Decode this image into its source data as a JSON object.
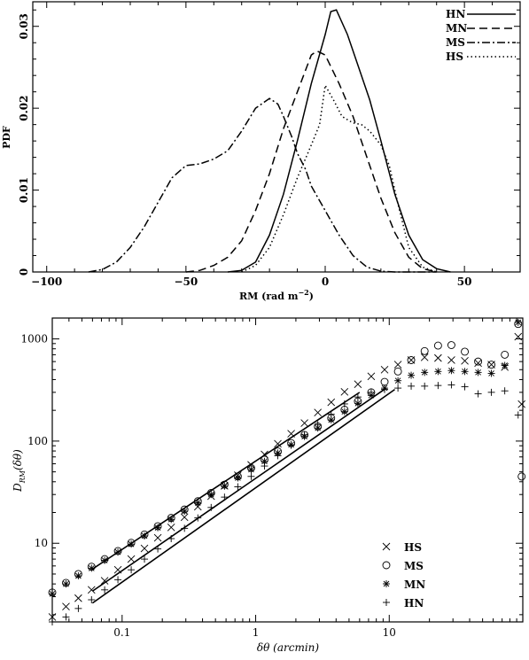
{
  "chart_data": [
    {
      "type": "line",
      "xlabel": "RM (rad m",
      "xlabel_sup": "−2",
      "xlabel_end": ")",
      "ylabel": "PDF",
      "xlim": [
        -105,
        70
      ],
      "ylim": [
        0,
        0.033
      ],
      "x_ticks": [
        -100,
        -50,
        0,
        50
      ],
      "y_ticks": [
        0,
        0.01,
        0.02,
        0.03
      ],
      "x_tick_labels": [
        "−100",
        "−50",
        "0",
        "50"
      ],
      "y_tick_labels": [
        "0",
        "0.01",
        "0.02",
        "0.03"
      ],
      "legend_position": "top-right",
      "series": [
        {
          "name": "HN",
          "style": "solid",
          "x": [
            -35,
            -30,
            -25,
            -20,
            -15,
            -10,
            -5,
            0,
            2,
            4,
            8,
            12,
            16,
            20,
            25,
            30,
            35,
            40,
            45
          ],
          "y": [
            0,
            0.0002,
            0.0012,
            0.0045,
            0.0095,
            0.016,
            0.023,
            0.029,
            0.0318,
            0.032,
            0.029,
            0.025,
            0.021,
            0.016,
            0.0095,
            0.0045,
            0.0015,
            0.0004,
            0
          ]
        },
        {
          "name": "MN",
          "style": "dashed",
          "x": [
            -50,
            -45,
            -40,
            -35,
            -30,
            -25,
            -20,
            -15,
            -10,
            -5,
            -3,
            0,
            5,
            10,
            15,
            20,
            25,
            30,
            35,
            40
          ],
          "y": [
            0,
            0.0002,
            0.0008,
            0.0018,
            0.0038,
            0.0075,
            0.012,
            0.0175,
            0.022,
            0.0265,
            0.027,
            0.0265,
            0.023,
            0.019,
            0.014,
            0.009,
            0.0048,
            0.0018,
            0.0004,
            0
          ]
        },
        {
          "name": "MS",
          "style": "dash-dot",
          "x": [
            -85,
            -80,
            -75,
            -70,
            -65,
            -60,
            -55,
            -50,
            -45,
            -40,
            -35,
            -30,
            -25,
            -20,
            -17,
            -15,
            -12,
            -10,
            -7,
            -5,
            0,
            5,
            10,
            15,
            20,
            25,
            30,
            35,
            40
          ],
          "y": [
            0,
            0.0003,
            0.0012,
            0.003,
            0.0055,
            0.0085,
            0.0115,
            0.013,
            0.0132,
            0.0138,
            0.0148,
            0.0172,
            0.02,
            0.0212,
            0.0205,
            0.019,
            0.0165,
            0.0145,
            0.0125,
            0.0105,
            0.0075,
            0.0045,
            0.002,
            0.0006,
            0.0001,
            0,
            0,
            0,
            0
          ]
        },
        {
          "name": "HS",
          "style": "dotted",
          "x": [
            -30,
            -25,
            -20,
            -15,
            -10,
            -5,
            -2,
            0,
            3,
            6,
            10,
            13,
            16,
            20,
            23,
            26,
            30,
            35,
            40
          ],
          "y": [
            0,
            0.0008,
            0.003,
            0.007,
            0.0115,
            0.0155,
            0.018,
            0.0228,
            0.021,
            0.019,
            0.0182,
            0.018,
            0.0172,
            0.0155,
            0.013,
            0.0085,
            0.003,
            0.0006,
            0
          ]
        }
      ]
    },
    {
      "type": "scatter",
      "xscale": "log",
      "yscale": "log",
      "xlabel": "δθ (arcmin)",
      "ylabel": "D",
      "ylabel_sub": "RM",
      "ylabel_end": "(δθ)",
      "xlim": [
        0.03,
        100
      ],
      "ylim": [
        1.7,
        1600
      ],
      "x_ticks": [
        0.1,
        1,
        10
      ],
      "y_ticks": [
        10,
        100,
        1000
      ],
      "x_tick_labels": [
        "0.1",
        "1",
        "10"
      ],
      "y_tick_labels": [
        "10",
        "100",
        "1000"
      ],
      "legend_position": "bottom-right",
      "series": [
        {
          "name": "HS",
          "marker": "x",
          "x": [
            0.03,
            0.038,
            0.047,
            0.059,
            0.074,
            0.093,
            0.117,
            0.147,
            0.185,
            0.233,
            0.293,
            0.369,
            0.464,
            0.584,
            0.735,
            0.925,
            1.164,
            1.465,
            1.844,
            2.32,
            2.92,
            3.676,
            4.627,
            5.825,
            7.33,
            9.23,
            11.62,
            14.6,
            18.4,
            23.2,
            29.2,
            36.8,
            46.3,
            58.2,
            73.3,
            92.3,
            98
          ],
          "y": [
            1.9,
            2.4,
            2.9,
            3.5,
            4.3,
            5.5,
            7.0,
            8.9,
            11.3,
            14.3,
            18.0,
            22.8,
            28.9,
            36.5,
            46.3,
            58.5,
            74,
            94,
            118,
            150,
            190,
            240,
            303,
            360,
            430,
            500,
            560,
            620,
            660,
            650,
            620,
            610,
            580,
            560,
            530,
            1050,
            230
          ]
        },
        {
          "name": "MS",
          "marker": "circle",
          "x": [
            0.03,
            0.038,
            0.047,
            0.059,
            0.074,
            0.093,
            0.117,
            0.147,
            0.185,
            0.233,
            0.293,
            0.369,
            0.464,
            0.584,
            0.735,
            0.925,
            1.164,
            1.465,
            1.844,
            2.32,
            2.92,
            3.676,
            4.627,
            5.825,
            7.33,
            9.23,
            11.62,
            14.6,
            18.4,
            23.2,
            29.2,
            36.8,
            46.3,
            58.2,
            73.3,
            92.3,
            98
          ],
          "y": [
            3.3,
            4.1,
            5.0,
            5.9,
            7.0,
            8.4,
            10.1,
            12.2,
            14.7,
            17.7,
            21.4,
            25.8,
            31.1,
            37.5,
            45.2,
            54.5,
            65.7,
            79.2,
            95.5,
            115,
            139,
            168,
            203,
            245,
            300,
            380,
            480,
            620,
            760,
            860,
            870,
            750,
            600,
            560,
            700,
            1400,
            45
          ]
        },
        {
          "name": "MN",
          "marker": "star",
          "x": [
            0.03,
            0.038,
            0.047,
            0.059,
            0.074,
            0.093,
            0.117,
            0.147,
            0.185,
            0.233,
            0.293,
            0.369,
            0.464,
            0.584,
            0.735,
            0.925,
            1.164,
            1.465,
            1.844,
            2.32,
            2.92,
            3.676,
            4.627,
            5.825,
            7.33,
            9.23,
            11.62,
            14.6,
            18.4,
            23.2,
            29.2,
            36.8,
            46.3,
            58.2,
            73.3,
            92.3
          ],
          "y": [
            3.2,
            4.0,
            4.8,
            5.7,
            6.8,
            8.2,
            9.8,
            11.8,
            14.2,
            17.1,
            20.6,
            24.9,
            30.0,
            36.2,
            43.6,
            52.6,
            63.4,
            76.4,
            92.1,
            111,
            134,
            161,
            194,
            234,
            280,
            330,
            390,
            440,
            470,
            480,
            490,
            480,
            470,
            460,
            550,
            1450
          ]
        },
        {
          "name": "HN",
          "marker": "plus",
          "x": [
            0.03,
            0.038,
            0.047,
            0.059,
            0.074,
            0.093,
            0.117,
            0.147,
            0.185,
            0.233,
            0.293,
            0.369,
            0.464,
            0.584,
            0.735,
            0.925,
            1.164,
            1.465,
            1.844,
            2.32,
            2.92,
            3.676,
            4.627,
            5.825,
            7.33,
            9.23,
            11.62,
            14.6,
            18.4,
            23.2,
            29.2,
            36.8,
            46.3,
            58.2,
            73.3,
            92.3
          ],
          "y": [
            1.7,
            1.9,
            2.3,
            2.8,
            3.5,
            4.4,
            5.5,
            7.0,
            8.8,
            11.1,
            14.0,
            17.7,
            22.4,
            28.3,
            35.7,
            45.1,
            57.0,
            72.0,
            91.0,
            115,
            145,
            183,
            231,
            270,
            300,
            320,
            330,
            345,
            345,
            350,
            355,
            340,
            290,
            300,
            310,
            180
          ]
        }
      ],
      "fit_lines": [
        {
          "x": [
            0.06,
            6.0
          ],
          "y": [
            5.6,
            300
          ]
        },
        {
          "x": [
            0.06,
            9.5
          ],
          "y": [
            3.4,
            330
          ]
        },
        {
          "x": [
            0.06,
            11.0
          ],
          "y": [
            2.6,
            320
          ]
        }
      ]
    }
  ]
}
